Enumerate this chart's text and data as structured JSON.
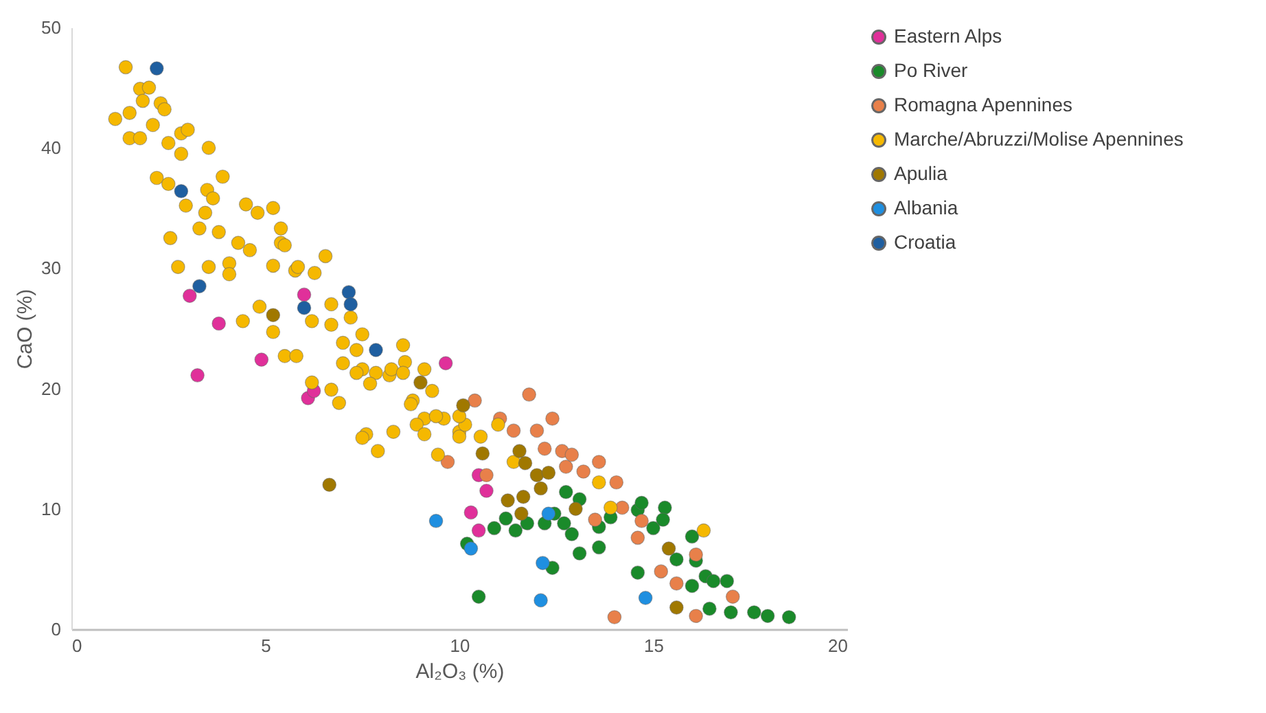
{
  "chart_data": {
    "type": "scatter",
    "xlabel": "Al₂O₃ (%)",
    "ylabel": "CaO (%)",
    "xlim": [
      0,
      20
    ],
    "xticks": [
      0,
      5,
      10,
      15,
      20
    ],
    "ylim": [
      0,
      50
    ],
    "yticks": [
      0,
      10,
      20,
      30,
      40,
      50
    ],
    "grid": false,
    "legend": "top right",
    "marker": "circle",
    "series": [
      {
        "name": "Eastern Alps",
        "color": "#e0309a",
        "x": [
          3.05,
          3.8,
          4.9,
          3.25,
          6.0,
          6.1,
          6.25,
          9.65,
          10.5,
          10.7,
          10.3,
          10.5
        ],
        "values": [
          27.7,
          25.4,
          22.4,
          21.1,
          27.8,
          19.2,
          19.8,
          22.1,
          12.8,
          11.5,
          9.7,
          8.2
        ]
      },
      {
        "name": "Po River",
        "color": "#1a8a2a",
        "x": [
          10.5,
          10.2,
          10.9,
          11.2,
          11.45,
          12.2,
          12.4,
          12.7,
          12.75,
          13.1,
          12.9,
          11.75,
          13.6,
          13.6,
          13.9,
          14.6,
          14.7,
          15.0,
          15.3,
          14.6,
          15.6,
          16.0,
          16.0,
          16.35,
          16.55,
          16.9,
          16.45,
          17.0,
          17.6,
          17.95,
          18.5,
          13.1,
          12.45,
          15.25,
          16.1
        ],
        "values": [
          2.7,
          7.1,
          8.4,
          9.2,
          8.2,
          8.8,
          5.1,
          8.8,
          11.4,
          6.3,
          7.9,
          8.8,
          6.8,
          8.5,
          9.3,
          9.9,
          10.5,
          8.4,
          10.1,
          4.7,
          5.8,
          7.7,
          3.6,
          4.4,
          4.0,
          4.0,
          1.7,
          1.4,
          1.4,
          1.1,
          1.0,
          10.8,
          9.6,
          9.1,
          5.7
        ]
      },
      {
        "name": "Romagna Apennines",
        "color": "#e8804a",
        "x": [
          11.8,
          10.4,
          12.4,
          11.4,
          12.0,
          11.05,
          12.65,
          12.75,
          9.7,
          10.7,
          12.2,
          12.9,
          13.6,
          13.2,
          14.05,
          14.2,
          14.7,
          14.6,
          13.5,
          16.1,
          15.2,
          15.6,
          17.05,
          16.1,
          14.0
        ],
        "values": [
          19.5,
          19.0,
          17.5,
          16.5,
          16.5,
          17.5,
          14.8,
          13.5,
          13.9,
          12.8,
          15.0,
          14.5,
          13.9,
          13.1,
          12.2,
          10.1,
          9.0,
          7.6,
          9.1,
          6.2,
          4.8,
          3.8,
          2.7,
          1.1,
          1.0
        ]
      },
      {
        "name": "Marche/Abruzzi/Molise Apennines",
        "color": "#f5b800",
        "x": [
          1.4,
          1.77,
          2.0,
          1.84,
          2.3,
          2.4,
          1.13,
          1.5,
          2.1,
          1.5,
          1.77,
          2.5,
          2.83,
          3.0,
          2.83,
          3.54,
          2.2,
          2.5,
          3.9,
          3.5,
          3.65,
          2.95,
          3.45,
          3.3,
          3.8,
          4.5,
          5.2,
          4.8,
          2.55,
          5.4,
          5.4,
          4.3,
          4.6,
          6.55,
          2.75,
          3.54,
          4.07,
          5.2,
          5.77,
          6.27,
          5.5,
          4.07,
          5.84,
          4.42,
          4.85,
          5.2,
          5.5,
          5.8,
          6.2,
          6.7,
          6.7,
          7.2,
          7.5,
          7.0,
          7.35,
          7.0,
          7.5,
          7.85,
          8.2,
          7.7,
          8.55,
          8.6,
          9.1,
          8.8,
          6.2,
          6.7,
          6.9,
          7.6,
          8.3,
          9.3,
          9.6,
          10.0,
          9.1,
          7.5,
          7.9,
          8.75,
          8.9,
          9.4,
          9.1,
          9.45,
          10.0,
          10.15,
          10.0,
          11.0,
          10.55,
          11.4,
          8.25,
          8.55,
          7.35,
          13.6,
          13.9,
          16.3
        ],
        "values": [
          46.7,
          44.9,
          45.0,
          43.9,
          43.7,
          43.2,
          42.4,
          42.9,
          41.9,
          40.8,
          40.8,
          40.4,
          41.2,
          41.5,
          39.5,
          40.0,
          37.5,
          37.0,
          37.6,
          36.5,
          35.8,
          35.2,
          34.6,
          33.3,
          33.0,
          35.3,
          35.0,
          34.6,
          32.5,
          33.3,
          32.1,
          32.1,
          31.5,
          31.0,
          30.1,
          30.1,
          30.4,
          30.2,
          29.8,
          29.6,
          31.9,
          29.5,
          30.1,
          25.6,
          26.8,
          24.7,
          22.7,
          22.7,
          25.6,
          27.0,
          25.3,
          25.9,
          24.5,
          23.8,
          23.2,
          22.1,
          21.6,
          21.3,
          21.1,
          20.4,
          23.6,
          22.2,
          21.6,
          19.0,
          20.5,
          19.9,
          18.8,
          16.2,
          16.4,
          19.8,
          17.5,
          16.4,
          17.5,
          15.9,
          14.8,
          18.7,
          17.0,
          17.7,
          16.2,
          14.5,
          16.0,
          17.0,
          17.7,
          17.0,
          16.0,
          13.9,
          21.6,
          21.3,
          21.3,
          12.2,
          10.1,
          8.2
        ]
      },
      {
        "name": "Apulia",
        "color": "#a07800",
        "x": [
          5.2,
          9.0,
          10.1,
          6.65,
          10.6,
          11.55,
          11.7,
          12.0,
          12.3,
          12.1,
          11.25,
          11.65,
          11.6,
          13.0,
          15.4,
          15.6
        ],
        "values": [
          26.1,
          20.5,
          18.6,
          12.0,
          14.6,
          14.8,
          13.8,
          12.8,
          13.0,
          11.7,
          10.7,
          11.0,
          9.6,
          10.0,
          6.7,
          1.8
        ]
      },
      {
        "name": "Albania",
        "color": "#1f8fe0",
        "x": [
          9.4,
          10.3,
          12.15,
          12.1,
          12.3,
          14.8
        ],
        "values": [
          9.0,
          6.7,
          5.5,
          2.4,
          9.6,
          2.6
        ]
      },
      {
        "name": "Croatia",
        "color": "#1f5fa0",
        "x": [
          2.2,
          2.83,
          3.3,
          7.15,
          7.2,
          6.0,
          7.85
        ],
        "values": [
          46.6,
          36.4,
          28.5,
          28.0,
          27.0,
          26.7,
          23.2
        ]
      }
    ]
  }
}
